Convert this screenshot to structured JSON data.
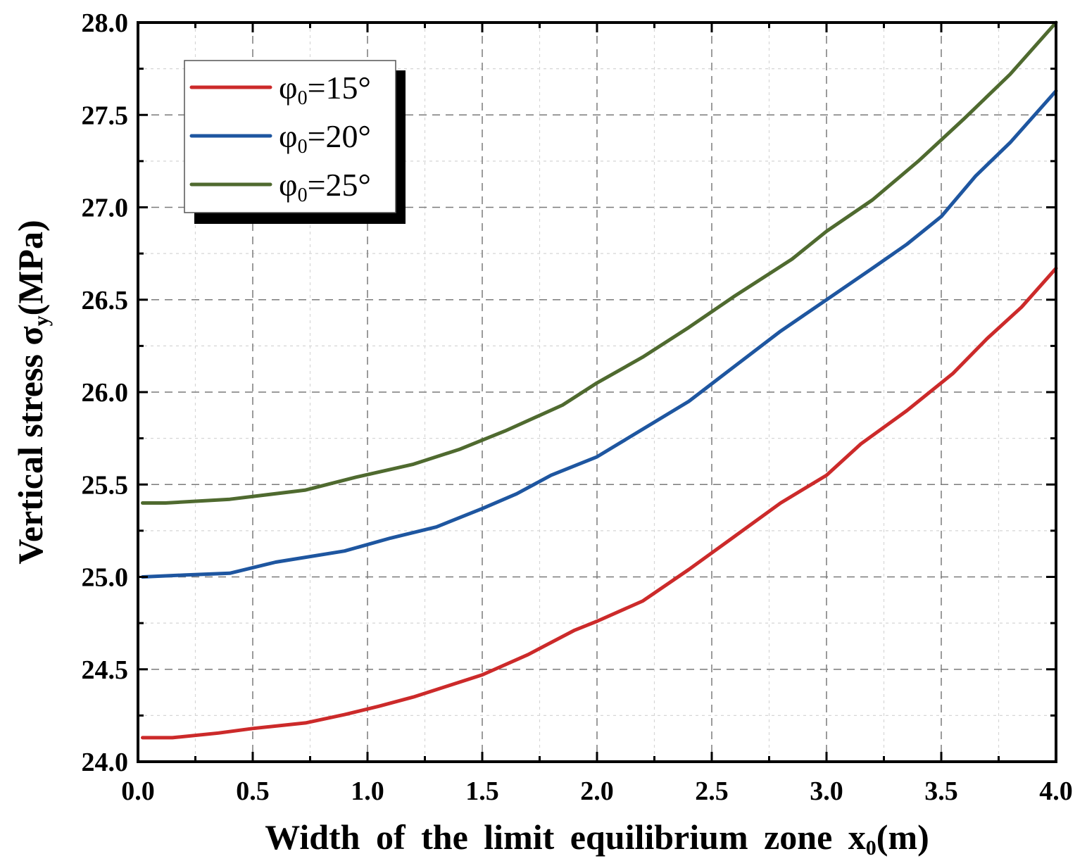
{
  "chart_data": {
    "type": "line",
    "title": "",
    "xlabel": "Width of the limit equilibrium zone x",
    "xlabel_sub": "0",
    "xlabel_unit": "(m)",
    "ylabel": "Vertical stress σ",
    "ylabel_sub": "y",
    "ylabel_unit": "(MPa)",
    "xlim": [
      0,
      4
    ],
    "ylim": [
      24,
      28
    ],
    "xticks": [
      0,
      0.5,
      1,
      1.5,
      2,
      2.5,
      3,
      3.5,
      4
    ],
    "xtick_labels": [
      "0.0",
      "0.5",
      "1.0",
      "1.5",
      "2.0",
      "2.5",
      "3.0",
      "3.5",
      "4.0"
    ],
    "yticks": [
      24,
      24.5,
      25,
      25.5,
      26,
      26.5,
      27,
      27.5,
      28
    ],
    "ytick_labels": [
      "24.0",
      "24.5",
      "25.0",
      "25.5",
      "26.0",
      "26.5",
      "27.0",
      "27.5",
      "28.0"
    ],
    "grid": true,
    "legend_position": "top-left",
    "series": [
      {
        "name": "φ0=15°",
        "label_main": "φ",
        "label_sub": "0",
        "label_rest": "=15°",
        "color": "#cc2a2a",
        "x": [
          0.02,
          0.15,
          0.35,
          0.5,
          0.73,
          0.9,
          1.05,
          1.2,
          1.35,
          1.5,
          1.7,
          1.9,
          2.0,
          2.2,
          2.4,
          2.6,
          2.8,
          3.0,
          3.15,
          3.35,
          3.55,
          3.7,
          3.85,
          4.0
        ],
        "y": [
          24.13,
          24.13,
          24.155,
          24.18,
          24.21,
          24.255,
          24.3,
          24.35,
          24.41,
          24.47,
          24.58,
          24.71,
          24.76,
          24.87,
          25.04,
          25.22,
          25.4,
          25.55,
          25.72,
          25.9,
          26.1,
          26.29,
          26.46,
          26.67
        ]
      },
      {
        "name": "φ0=20°",
        "label_main": "φ",
        "label_sub": "0",
        "label_rest": "=20°",
        "color": "#1e56a0",
        "x": [
          0.02,
          0.2,
          0.4,
          0.6,
          0.9,
          1.1,
          1.3,
          1.5,
          1.65,
          1.8,
          2.0,
          2.2,
          2.4,
          2.6,
          2.8,
          3.0,
          3.2,
          3.35,
          3.5,
          3.65,
          3.8,
          4.0
        ],
        "y": [
          25.0,
          25.01,
          25.02,
          25.08,
          25.14,
          25.21,
          25.27,
          25.37,
          25.45,
          25.55,
          25.65,
          25.8,
          25.95,
          26.14,
          26.33,
          26.5,
          26.67,
          26.8,
          26.95,
          27.17,
          27.35,
          27.63
        ]
      },
      {
        "name": "φ0=25°",
        "label_main": "φ",
        "label_sub": "0",
        "label_rest": "=25°",
        "color": "#4f6a2f",
        "x": [
          0.02,
          0.12,
          0.4,
          0.73,
          0.95,
          1.2,
          1.4,
          1.6,
          1.85,
          2.0,
          2.2,
          2.4,
          2.6,
          2.85,
          3.0,
          3.2,
          3.4,
          3.6,
          3.8,
          4.0
        ],
        "y": [
          25.4,
          25.4,
          25.42,
          25.47,
          25.54,
          25.61,
          25.69,
          25.79,
          25.93,
          26.05,
          26.19,
          26.35,
          26.52,
          26.72,
          26.87,
          27.04,
          27.25,
          27.48,
          27.72,
          28.0
        ]
      }
    ]
  }
}
